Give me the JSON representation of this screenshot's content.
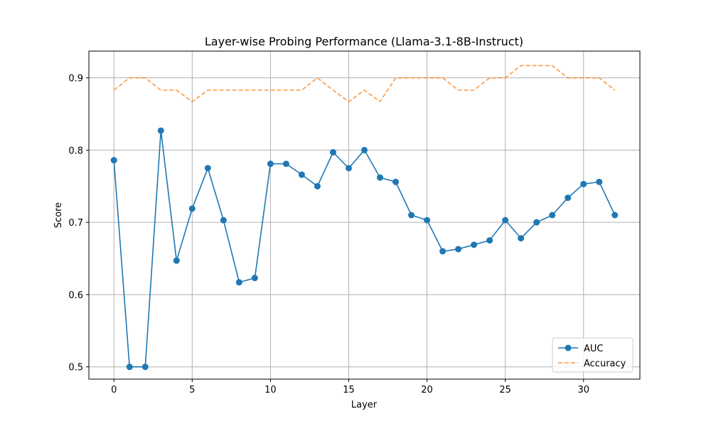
{
  "chart_data": {
    "type": "line",
    "title": "Layer-wise Probing Performance (Llama-3.1-8B-Instruct)",
    "xlabel": "Layer",
    "ylabel": "Score",
    "xlim": [
      -1.6,
      33.6
    ],
    "ylim": [
      0.483,
      0.937
    ],
    "x_ticks": [
      0,
      5,
      10,
      15,
      20,
      25,
      30
    ],
    "y_ticks": [
      0.5,
      0.6,
      0.7,
      0.8,
      0.9
    ],
    "x_tick_labels": [
      "0",
      "5",
      "10",
      "15",
      "20",
      "25",
      "30"
    ],
    "y_tick_labels": [
      "0.5",
      "0.6",
      "0.7",
      "0.8",
      "0.9"
    ],
    "grid": true,
    "legend_position": "bottom-right",
    "x": [
      0,
      1,
      2,
      3,
      4,
      5,
      6,
      7,
      8,
      9,
      10,
      11,
      12,
      13,
      14,
      15,
      16,
      17,
      18,
      19,
      20,
      21,
      22,
      23,
      24,
      25,
      26,
      27,
      28,
      29,
      30,
      31,
      32
    ],
    "series": [
      {
        "name": "AUC",
        "color": "#1f77b4",
        "style": "solid-markers",
        "values": [
          0.786,
          0.5,
          0.5,
          0.827,
          0.647,
          0.719,
          0.775,
          0.703,
          0.617,
          0.623,
          0.781,
          0.781,
          0.766,
          0.75,
          0.797,
          0.775,
          0.8,
          0.762,
          0.756,
          0.71,
          0.703,
          0.66,
          0.663,
          0.669,
          0.675,
          0.703,
          0.678,
          0.7,
          0.71,
          0.734,
          0.753,
          0.756,
          0.71
        ]
      },
      {
        "name": "Accuracy",
        "color": "#ff7f0e",
        "style": "dashed",
        "values": [
          0.883,
          0.9,
          0.9,
          0.883,
          0.883,
          0.867,
          0.883,
          0.883,
          0.883,
          0.883,
          0.883,
          0.883,
          0.883,
          0.9,
          0.883,
          0.867,
          0.883,
          0.867,
          0.9,
          0.9,
          0.9,
          0.9,
          0.883,
          0.883,
          0.9,
          0.9,
          0.917,
          0.917,
          0.917,
          0.9,
          0.9,
          0.9,
          0.883
        ]
      }
    ]
  }
}
